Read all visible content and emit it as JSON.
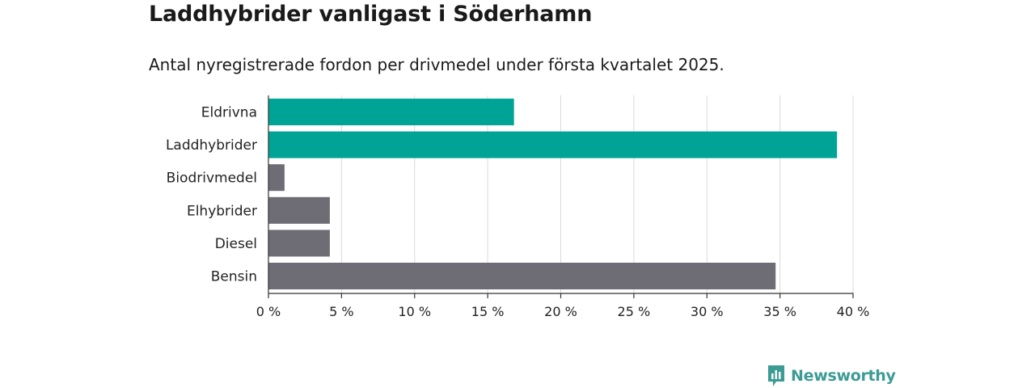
{
  "header": {
    "title": "Laddhybrider vanligast i Söderhamn",
    "subtitle": "Antal nyregistrerade fordon per drivmedel under första kvartalet 2025."
  },
  "brand": {
    "name": "Newsworthy",
    "icon": "newsworthy-logo-icon",
    "color": "#3c9b95"
  },
  "colors": {
    "highlight": "#00a497",
    "default": "#6e6d75",
    "grid": "#d9d9d9",
    "axis": "#333333"
  },
  "chart_data": {
    "type": "bar",
    "orientation": "horizontal",
    "categories": [
      "Eldrivna",
      "Laddhybrider",
      "Biodrivmedel",
      "Elhybrider",
      "Diesel",
      "Bensin"
    ],
    "values": [
      16.8,
      38.9,
      1.1,
      4.2,
      4.2,
      34.7
    ],
    "highlighted": [
      true,
      true,
      false,
      false,
      false,
      false
    ],
    "xlim": [
      0,
      40
    ],
    "xticks": [
      0,
      5,
      10,
      15,
      20,
      25,
      30,
      35,
      40
    ],
    "xtick_labels": [
      "0 %",
      "5 %",
      "10 %",
      "15 %",
      "20 %",
      "25 %",
      "30 %",
      "35 %",
      "40 %"
    ],
    "xlabel": "",
    "ylabel": "",
    "grid": true
  }
}
